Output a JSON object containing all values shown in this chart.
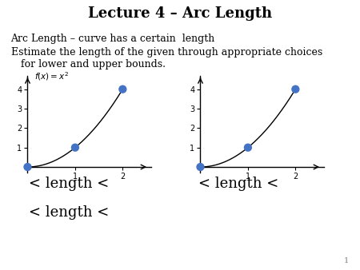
{
  "title": "Lecture 4 – Arc Length",
  "line1": "Arc Length – curve has a certain  length",
  "line2": "Estimate the length of the given through appropriate choices\n   for lower and upper bounds.",
  "func_label": "$f(x) = x^2$",
  "dot_points": [
    [
      0,
      0
    ],
    [
      1,
      1
    ],
    [
      2,
      4
    ]
  ],
  "xlim": [
    -0.05,
    2.6
  ],
  "ylim": [
    -0.3,
    4.7
  ],
  "yticks": [
    1,
    2,
    3,
    4
  ],
  "xticks": [
    1,
    2
  ],
  "bg_color": "#ffffff",
  "dot_color": "#4472C4",
  "dot_size": 55,
  "line_color": "#000000",
  "text_left1": "< length <",
  "text_left2": "< length <",
  "text_right1": "< length <",
  "text_fontsize": 13,
  "title_fontsize": 13,
  "body_fontsize": 9,
  "page_number": "1"
}
